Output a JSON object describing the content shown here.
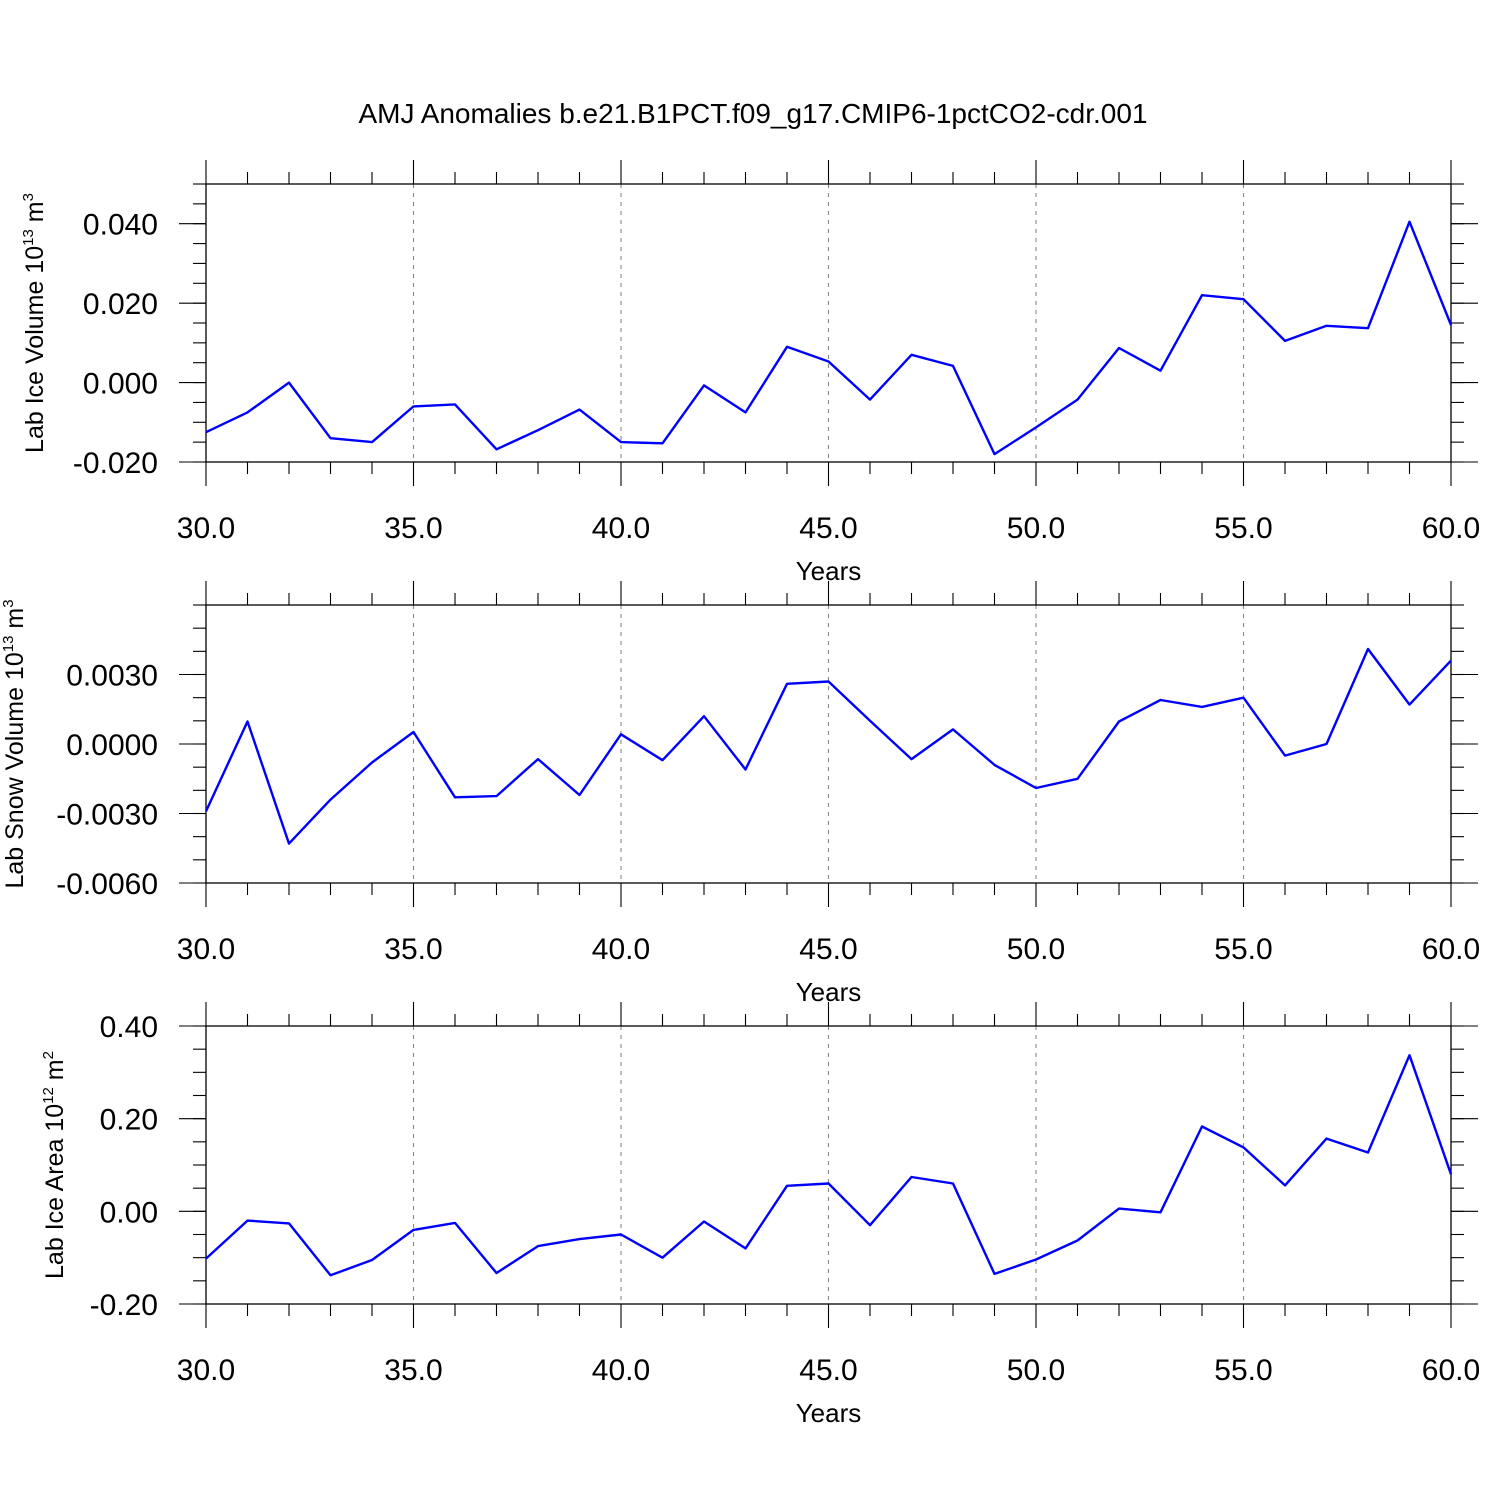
{
  "title": "AMJ Anomalies b.e21.B1PCT.f09_g17.CMIP6-1pctCO2-cdr.001",
  "chart_data": [
    {
      "type": "line",
      "ylabel": {
        "text": "Lab Ice Volume 10",
        "sup": "13",
        "unit": " m",
        "unit_sup": "3"
      },
      "xlabel": "Years",
      "xlim": [
        30,
        60
      ],
      "ylim": [
        -0.02,
        0.05
      ],
      "x_ticks": [
        "30.0",
        "35.0",
        "40.0",
        "45.0",
        "50.0",
        "55.0",
        "60.0"
      ],
      "y_ticks": [
        "-0.020",
        "0.000",
        "0.020",
        "0.040"
      ],
      "grid": "vertical dashed at major x ticks",
      "series": [
        {
          "color": "#0000ff",
          "x": [
            30,
            31,
            32,
            33,
            34,
            35,
            36,
            37,
            38,
            39,
            40,
            41,
            42,
            43,
            44,
            45,
            46,
            47,
            48,
            49,
            50,
            51,
            52,
            53,
            54,
            55,
            56,
            57,
            58,
            59,
            60
          ],
          "values": [
            -0.0125,
            -0.0075,
            0.0,
            -0.014,
            -0.015,
            -0.006,
            -0.0055,
            -0.0168,
            -0.012,
            -0.0068,
            -0.015,
            -0.0153,
            -0.0007,
            -0.0075,
            0.009,
            0.0053,
            -0.0043,
            0.007,
            0.0042,
            -0.018,
            -0.0113,
            -0.0043,
            0.0087,
            0.003,
            0.022,
            0.021,
            0.0105,
            0.0143,
            0.0137,
            0.0405,
            0.0145
          ]
        }
      ]
    },
    {
      "type": "line",
      "ylabel": {
        "text": "Lab Snow Volume 10",
        "sup": "13",
        "unit": " m",
        "unit_sup": "3"
      },
      "xlabel": "Years",
      "xlim": [
        30,
        60
      ],
      "ylim": [
        -0.006,
        0.006
      ],
      "x_ticks": [
        "30.0",
        "35.0",
        "40.0",
        "45.0",
        "50.0",
        "55.0",
        "60.0"
      ],
      "y_ticks": [
        "-0.0060",
        "-0.0030",
        "0.0000",
        "0.0030"
      ],
      "grid": "vertical dashed at major x ticks",
      "series": [
        {
          "color": "#0000ff",
          "x": [
            30,
            31,
            32,
            33,
            34,
            35,
            36,
            37,
            38,
            39,
            40,
            41,
            42,
            43,
            44,
            45,
            46,
            47,
            48,
            49,
            50,
            51,
            52,
            53,
            54,
            55,
            56,
            57,
            58,
            59,
            60
          ],
          "values": [
            -0.0029,
            0.00097,
            -0.0043,
            -0.0024,
            -0.0008,
            0.00052,
            -0.0023,
            -0.00225,
            -0.00065,
            -0.0022,
            0.00042,
            -0.0007,
            0.0012,
            -0.0011,
            0.0026,
            0.0027,
            0.001,
            -0.00065,
            0.00063,
            -0.0009,
            -0.0019,
            -0.0015,
            0.00097,
            0.0019,
            0.0016,
            0.002,
            -0.0005,
            0.0,
            0.0041,
            0.0017,
            0.0036
          ]
        }
      ]
    },
    {
      "type": "line",
      "ylabel": {
        "text": "Lab Ice Area 10",
        "sup": "12",
        "unit": " m",
        "unit_sup": "2"
      },
      "xlabel": "Years",
      "xlim": [
        30,
        60
      ],
      "ylim": [
        -0.2,
        0.4
      ],
      "x_ticks": [
        "30.0",
        "35.0",
        "40.0",
        "45.0",
        "50.0",
        "55.0",
        "60.0"
      ],
      "y_ticks": [
        "-0.20",
        "0.00",
        "0.20",
        "0.40"
      ],
      "grid": "vertical dashed at major x ticks",
      "series": [
        {
          "color": "#0000ff",
          "x": [
            30,
            31,
            32,
            33,
            34,
            35,
            36,
            37,
            38,
            39,
            40,
            41,
            42,
            43,
            44,
            45,
            46,
            47,
            48,
            49,
            50,
            51,
            52,
            53,
            54,
            55,
            56,
            57,
            58,
            59,
            60
          ],
          "values": [
            -0.102,
            -0.02,
            -0.026,
            -0.138,
            -0.105,
            -0.04,
            -0.025,
            -0.133,
            -0.075,
            -0.06,
            -0.05,
            -0.1,
            -0.022,
            -0.08,
            0.055,
            0.06,
            -0.03,
            0.074,
            0.06,
            -0.135,
            -0.104,
            -0.063,
            0.006,
            -0.002,
            0.183,
            0.138,
            0.056,
            0.157,
            0.127,
            0.337,
            0.08
          ]
        }
      ]
    }
  ]
}
